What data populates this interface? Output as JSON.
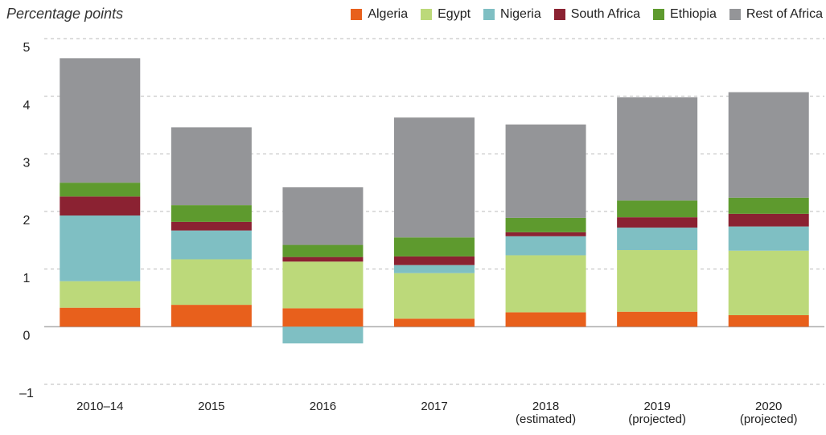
{
  "chart_data": {
    "type": "bar",
    "stacked": true,
    "y_axis_label": "Percentage points",
    "categories": [
      "2010–14",
      "2015",
      "2016",
      "2017",
      "2018\n(estimated)",
      "2019\n(projected)",
      "2020\n(projected)"
    ],
    "series": [
      {
        "name": "Algeria",
        "color": "#e8601c",
        "values": [
          0.33,
          0.38,
          0.32,
          0.14,
          0.25,
          0.26,
          0.2
        ]
      },
      {
        "name": "Egypt",
        "color": "#bcd97a",
        "values": [
          0.46,
          0.79,
          0.81,
          0.79,
          0.99,
          1.07,
          1.12
        ]
      },
      {
        "name": "Nigeria",
        "color": "#7fbfc3",
        "values": [
          1.14,
          0.5,
          -0.29,
          0.14,
          0.33,
          0.39,
          0.42
        ]
      },
      {
        "name": "South Africa",
        "color": "#8b2232",
        "values": [
          0.33,
          0.15,
          0.08,
          0.15,
          0.07,
          0.18,
          0.22
        ]
      },
      {
        "name": "Ethiopia",
        "color": "#5e9a2e",
        "values": [
          0.24,
          0.29,
          0.21,
          0.33,
          0.25,
          0.29,
          0.28
        ]
      },
      {
        "name": "Rest of Africa",
        "color": "#949598",
        "values": [
          2.16,
          1.35,
          1.0,
          2.08,
          1.62,
          1.79,
          1.83
        ]
      }
    ],
    "ylim": [
      -1,
      5
    ],
    "yticks": [
      {
        "value": -1,
        "label": "–1"
      },
      0,
      1,
      2,
      3,
      4,
      5
    ],
    "grid": true,
    "legend": "top-right"
  }
}
